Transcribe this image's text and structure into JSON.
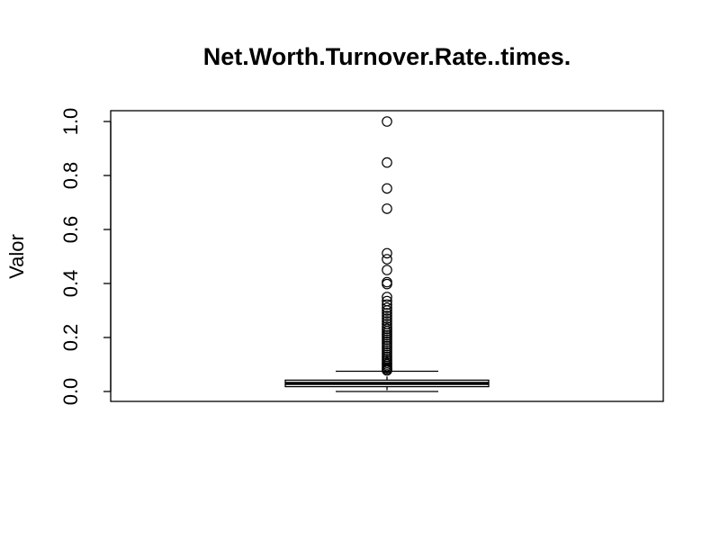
{
  "chart_data": {
    "type": "boxplot",
    "title": "Net.Worth.Turnover.Rate..times.",
    "xlabel": "",
    "ylabel": "Valor",
    "ylim": [
      0.0,
      1.0
    ],
    "yticks": [
      0.0,
      0.2,
      0.4,
      0.6,
      0.8,
      1.0
    ],
    "ytick_labels": [
      "0.0",
      "0.2",
      "0.4",
      "0.6",
      "0.8",
      "1.0"
    ],
    "grid": false,
    "legend": "none",
    "box": {
      "whisker_low": 0.0,
      "q1": 0.018,
      "median": 0.03,
      "q3": 0.042,
      "whisker_high": 0.075
    },
    "outliers": [
      1.0,
      0.848,
      0.752,
      0.677,
      0.512,
      0.49,
      0.45,
      0.405,
      0.398,
      0.35,
      0.335,
      0.322,
      0.31,
      0.3,
      0.29,
      0.28,
      0.27,
      0.26,
      0.25,
      0.24,
      0.232,
      0.224,
      0.216,
      0.208,
      0.2,
      0.192,
      0.184,
      0.176,
      0.168,
      0.16,
      0.152,
      0.144,
      0.136,
      0.128,
      0.12,
      0.113,
      0.106,
      0.1,
      0.094,
      0.088,
      0.083,
      0.078
    ],
    "colors": {
      "stroke": "#000000",
      "background": "#ffffff"
    }
  }
}
